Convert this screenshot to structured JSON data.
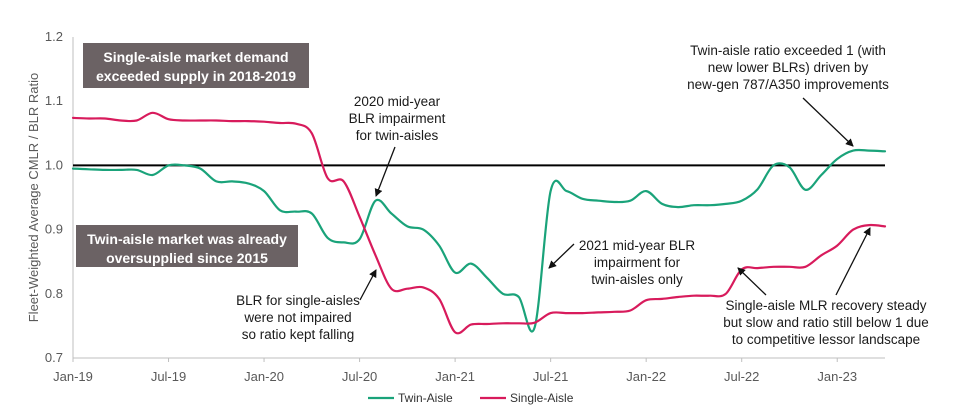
{
  "chart_data": {
    "type": "line",
    "title": "",
    "xlabel": "",
    "ylabel": "Fleet-Weighted Average CMLR / BLR Ratio",
    "ylim": [
      0.7,
      1.2
    ],
    "xlim": [
      "2019-01",
      "2023-04"
    ],
    "y_ticks": [
      "0.7",
      "0.8",
      "0.9",
      "1.0",
      "1.1",
      "1.2"
    ],
    "x_ticks": [
      "Jan-19",
      "Jul-19",
      "Jan-20",
      "Jul-20",
      "Jan-21",
      "Jul-21",
      "Jan-22",
      "Jul-22",
      "Jan-23"
    ],
    "reference_line": {
      "y": 1.0,
      "color": "#000000"
    },
    "grid": false,
    "legend_position": "bottom",
    "series": [
      {
        "name": "Twin-Aisle",
        "color": "#1aa37a",
        "points": [
          [
            "2019-01",
            0.995
          ],
          [
            "2019-02",
            0.994
          ],
          [
            "2019-03",
            0.993
          ],
          [
            "2019-04",
            0.993
          ],
          [
            "2019-05",
            0.993
          ],
          [
            "2019-06",
            0.985
          ],
          [
            "2019-07",
            1.0
          ],
          [
            "2019-08",
            1.0
          ],
          [
            "2019-09",
            0.995
          ],
          [
            "2019-10",
            0.975
          ],
          [
            "2019-11",
            0.975
          ],
          [
            "2019-12",
            0.972
          ],
          [
            "2020-01",
            0.96
          ],
          [
            "2020-02",
            0.93
          ],
          [
            "2020-03",
            0.928
          ],
          [
            "2020-04",
            0.925
          ],
          [
            "2020-05",
            0.887
          ],
          [
            "2020-06",
            0.88
          ],
          [
            "2020-07",
            0.885
          ],
          [
            "2020-08",
            0.945
          ],
          [
            "2020-09",
            0.925
          ],
          [
            "2020-10",
            0.905
          ],
          [
            "2020-11",
            0.9
          ],
          [
            "2020-12",
            0.875
          ],
          [
            "2021-01",
            0.833
          ],
          [
            "2021-02",
            0.847
          ],
          [
            "2021-03",
            0.825
          ],
          [
            "2021-04",
            0.8
          ],
          [
            "2021-05",
            0.795
          ],
          [
            "2021-06",
            0.748
          ],
          [
            "2021-07",
            0.96
          ],
          [
            "2021-08",
            0.96
          ],
          [
            "2021-09",
            0.948
          ],
          [
            "2021-10",
            0.945
          ],
          [
            "2021-11",
            0.943
          ],
          [
            "2021-12",
            0.945
          ],
          [
            "2022-01",
            0.96
          ],
          [
            "2022-02",
            0.94
          ],
          [
            "2022-03",
            0.935
          ],
          [
            "2022-04",
            0.938
          ],
          [
            "2022-05",
            0.938
          ],
          [
            "2022-06",
            0.94
          ],
          [
            "2022-07",
            0.945
          ],
          [
            "2022-08",
            0.963
          ],
          [
            "2022-09",
            1.0
          ],
          [
            "2022-10",
            0.997
          ],
          [
            "2022-11",
            0.962
          ],
          [
            "2022-12",
            0.985
          ],
          [
            "2023-01",
            1.01
          ],
          [
            "2023-02",
            1.023
          ],
          [
            "2023-03",
            1.023
          ],
          [
            "2023-04",
            1.022
          ]
        ]
      },
      {
        "name": "Single-Aisle",
        "color": "#d81b5c",
        "points": [
          [
            "2019-01",
            1.074
          ],
          [
            "2019-02",
            1.073
          ],
          [
            "2019-03",
            1.073
          ],
          [
            "2019-04",
            1.07
          ],
          [
            "2019-05",
            1.07
          ],
          [
            "2019-06",
            1.082
          ],
          [
            "2019-07",
            1.072
          ],
          [
            "2019-08",
            1.07
          ],
          [
            "2019-09",
            1.07
          ],
          [
            "2019-10",
            1.07
          ],
          [
            "2019-11",
            1.069
          ],
          [
            "2019-12",
            1.069
          ],
          [
            "2020-01",
            1.068
          ],
          [
            "2020-02",
            1.066
          ],
          [
            "2020-03",
            1.065
          ],
          [
            "2020-04",
            1.05
          ],
          [
            "2020-05",
            0.98
          ],
          [
            "2020-06",
            0.975
          ],
          [
            "2020-07",
            0.92
          ],
          [
            "2020-08",
            0.86
          ],
          [
            "2020-09",
            0.808
          ],
          [
            "2020-10",
            0.808
          ],
          [
            "2020-11",
            0.81
          ],
          [
            "2020-12",
            0.792
          ],
          [
            "2021-01",
            0.74
          ],
          [
            "2021-02",
            0.752
          ],
          [
            "2021-03",
            0.753
          ],
          [
            "2021-04",
            0.754
          ],
          [
            "2021-05",
            0.754
          ],
          [
            "2021-06",
            0.755
          ],
          [
            "2021-07",
            0.77
          ],
          [
            "2021-08",
            0.77
          ],
          [
            "2021-09",
            0.77
          ],
          [
            "2021-10",
            0.771
          ],
          [
            "2021-11",
            0.772
          ],
          [
            "2021-12",
            0.774
          ],
          [
            "2022-01",
            0.79
          ],
          [
            "2022-02",
            0.792
          ],
          [
            "2022-03",
            0.795
          ],
          [
            "2022-04",
            0.797
          ],
          [
            "2022-05",
            0.797
          ],
          [
            "2022-06",
            0.8
          ],
          [
            "2022-07",
            0.838
          ],
          [
            "2022-08",
            0.84
          ],
          [
            "2022-09",
            0.842
          ],
          [
            "2022-10",
            0.842
          ],
          [
            "2022-11",
            0.842
          ],
          [
            "2022-12",
            0.86
          ],
          [
            "2023-01",
            0.875
          ],
          [
            "2023-02",
            0.9
          ],
          [
            "2023-03",
            0.907
          ],
          [
            "2023-04",
            0.905
          ]
        ]
      }
    ],
    "annotations": {
      "box_single_demand": [
        "Single-aisle market demand",
        "exceeded supply in 2018-2019"
      ],
      "box_twin_oversupply": [
        "Twin-aisle market was already",
        "oversupplied since 2015"
      ],
      "note_2020": [
        "2020 mid-year",
        "BLR impairment",
        "for twin-aisles"
      ],
      "note_blr_single": [
        "BLR for single-aisles",
        "were not impaired",
        "so ratio kept falling"
      ],
      "note_2021": [
        "2021 mid-year BLR",
        "impairment for",
        "twin-aisles only"
      ],
      "note_twin_exceed": [
        "Twin-aisle ratio exceeded 1 (with",
        "new lower BLRs) driven by",
        "new-gen 787/A350 improvements"
      ],
      "note_single_recovery": [
        "Single-aisle MLR recovery steady",
        "but slow and ratio still below 1 due",
        "to competitive lessor landscape"
      ]
    },
    "box_color": "#6b6264"
  }
}
